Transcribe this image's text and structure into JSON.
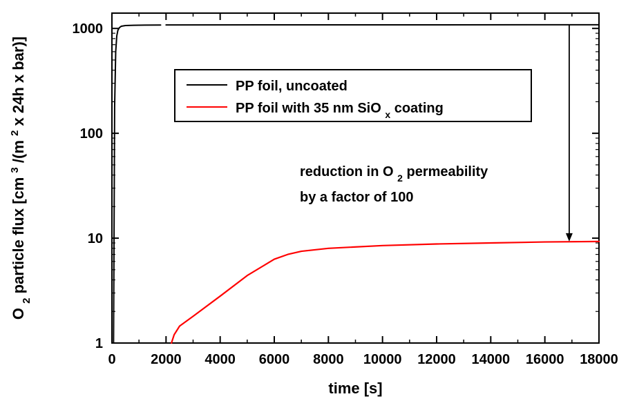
{
  "chart_data": {
    "type": "line",
    "title": "",
    "xlabel": "time [s]",
    "ylabel": {
      "prefix": "O",
      "prefix_sub": "2",
      "main": " particle flux [cm",
      "sup1": "3",
      "mid": "/(m",
      "sup2": "2",
      "end": " x 24h x bar)]"
    },
    "xlim": [
      0,
      18000
    ],
    "ylim": [
      1,
      1400
    ],
    "y_scale": "log",
    "grid": false,
    "x_ticks": [
      0,
      2000,
      4000,
      6000,
      8000,
      10000,
      12000,
      14000,
      16000,
      18000
    ],
    "x_tick_labels": [
      "0",
      "2000",
      "4000",
      "6000",
      "8000",
      "10000",
      "12000",
      "14000",
      "16000",
      "18000"
    ],
    "y_ticks": [
      1,
      10,
      100,
      1000
    ],
    "y_tick_labels": [
      "1",
      "10",
      "100",
      "1000"
    ],
    "legend": {
      "placement": "top-center",
      "entries": [
        {
          "series_index": 0,
          "label": "PP foil, uncoated"
        },
        {
          "series_index": 1,
          "label_main": "PP foil with 35 nm SiO",
          "label_sub": "x",
          "label_end": " coating"
        }
      ]
    },
    "series": [
      {
        "color": "#000000",
        "points": [
          [
            0,
            1
          ],
          [
            60,
            1
          ],
          [
            100,
            180
          ],
          [
            140,
            600
          ],
          [
            180,
            850
          ],
          [
            220,
            960
          ],
          [
            280,
            1020
          ],
          [
            350,
            1050
          ],
          [
            500,
            1065
          ],
          [
            800,
            1072
          ],
          [
            1200,
            1075
          ],
          [
            1800,
            1078
          ],
          [
            1850,
            null
          ],
          [
            2000,
            1080
          ],
          [
            6000,
            1082
          ],
          [
            12000,
            1083
          ],
          [
            18000,
            1084
          ]
        ]
      },
      {
        "color": "#ff0000",
        "points": [
          [
            2200,
            1
          ],
          [
            2300,
            1.2
          ],
          [
            2500,
            1.45
          ],
          [
            3000,
            1.8
          ],
          [
            4000,
            2.8
          ],
          [
            5000,
            4.4
          ],
          [
            6000,
            6.3
          ],
          [
            6500,
            7.0
          ],
          [
            7000,
            7.5
          ],
          [
            8000,
            8.0
          ],
          [
            10000,
            8.5
          ],
          [
            12000,
            8.8
          ],
          [
            14000,
            9.0
          ],
          [
            16000,
            9.2
          ],
          [
            18000,
            9.3
          ]
        ]
      }
    ],
    "annotation": {
      "line1_main": "reduction in O",
      "line1_sub": "2",
      "line1_end": " permeability",
      "line2": "by a factor of 100",
      "arrow_x": 16900,
      "arrow_from_y": 1084,
      "arrow_to_y": 9.3
    }
  }
}
